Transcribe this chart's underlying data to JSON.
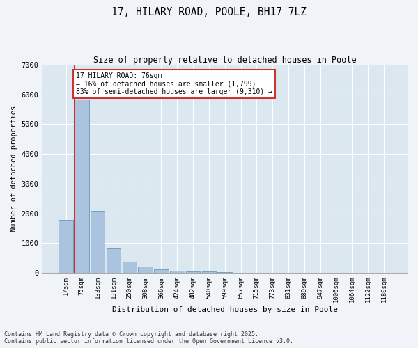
{
  "title1": "17, HILARY ROAD, POOLE, BH17 7LZ",
  "title2": "Size of property relative to detached houses in Poole",
  "xlabel": "Distribution of detached houses by size in Poole",
  "ylabel": "Number of detached properties",
  "categories": [
    "17sqm",
    "75sqm",
    "133sqm",
    "191sqm",
    "250sqm",
    "308sqm",
    "366sqm",
    "424sqm",
    "482sqm",
    "540sqm",
    "599sqm",
    "657sqm",
    "715sqm",
    "773sqm",
    "831sqm",
    "889sqm",
    "947sqm",
    "1006sqm",
    "1064sqm",
    "1122sqm",
    "1180sqm"
  ],
  "values": [
    1780,
    5820,
    2080,
    820,
    370,
    210,
    120,
    80,
    55,
    40,
    30,
    0,
    0,
    0,
    0,
    0,
    0,
    0,
    0,
    0,
    0
  ],
  "bar_color": "#aac4e0",
  "bar_edge_color": "#6699bb",
  "highlight_color": "#cc3333",
  "vline_bar_index": 1,
  "annotation_text": "17 HILARY ROAD: 76sqm\n← 16% of detached houses are smaller (1,799)\n83% of semi-detached houses are larger (9,310) →",
  "annotation_box_color": "#cc3333",
  "ylim": [
    0,
    7000
  ],
  "yticks": [
    0,
    1000,
    2000,
    3000,
    4000,
    5000,
    6000,
    7000
  ],
  "fig_background": "#f0f4f8",
  "ax_background": "#dce8f0",
  "grid_color": "#ffffff",
  "footer1": "Contains HM Land Registry data © Crown copyright and database right 2025.",
  "footer2": "Contains public sector information licensed under the Open Government Licence v3.0."
}
